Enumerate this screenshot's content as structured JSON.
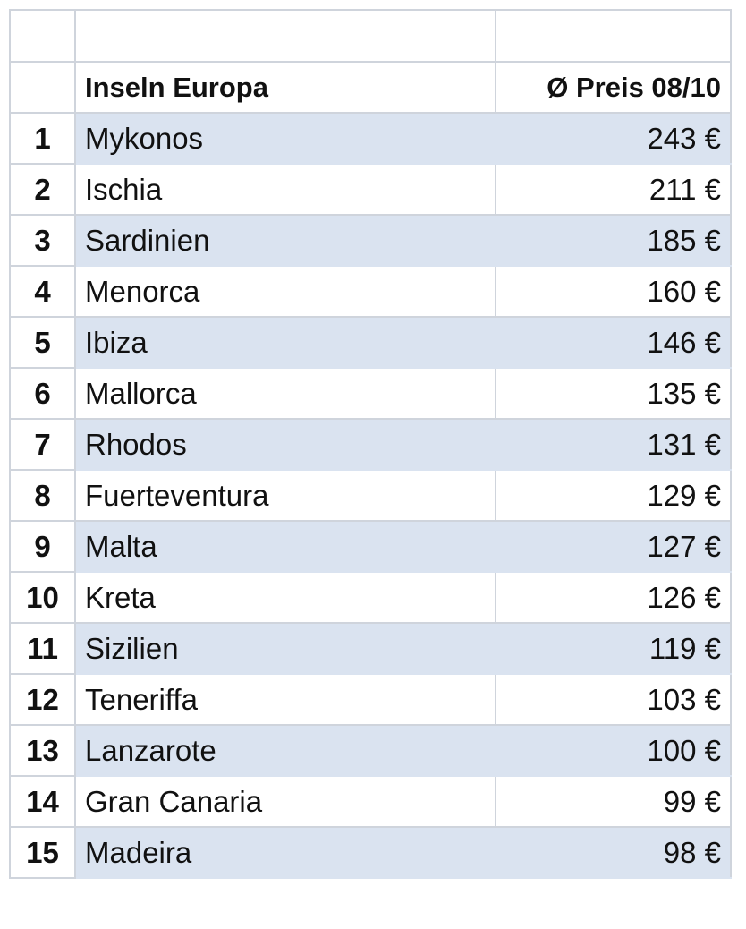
{
  "table": {
    "header": {
      "name": "Inseln Europa",
      "price": "Ø Preis 08/10"
    },
    "rows": [
      {
        "rank": 1,
        "name": "Mykonos",
        "price": "243 €"
      },
      {
        "rank": 2,
        "name": "Ischia",
        "price": "211 €"
      },
      {
        "rank": 3,
        "name": "Sardinien",
        "price": "185 €"
      },
      {
        "rank": 4,
        "name": "Menorca",
        "price": "160 €"
      },
      {
        "rank": 5,
        "name": "Ibiza",
        "price": "146 €"
      },
      {
        "rank": 6,
        "name": "Mallorca",
        "price": "135 €"
      },
      {
        "rank": 7,
        "name": "Rhodos",
        "price": "131 €"
      },
      {
        "rank": 8,
        "name": "Fuerteventura",
        "price": "129 €"
      },
      {
        "rank": 9,
        "name": "Malta",
        "price": "127 €"
      },
      {
        "rank": 10,
        "name": "Kreta",
        "price": "126 €"
      },
      {
        "rank": 11,
        "name": "Sizilien",
        "price": "119 €"
      },
      {
        "rank": 12,
        "name": "Teneriffa",
        "price": "103 €"
      },
      {
        "rank": 13,
        "name": "Lanzarote",
        "price": "100 €"
      },
      {
        "rank": 14,
        "name": "Gran Canaria",
        "price": "99 €"
      },
      {
        "rank": 15,
        "name": "Madeira",
        "price": "98 €"
      }
    ]
  }
}
